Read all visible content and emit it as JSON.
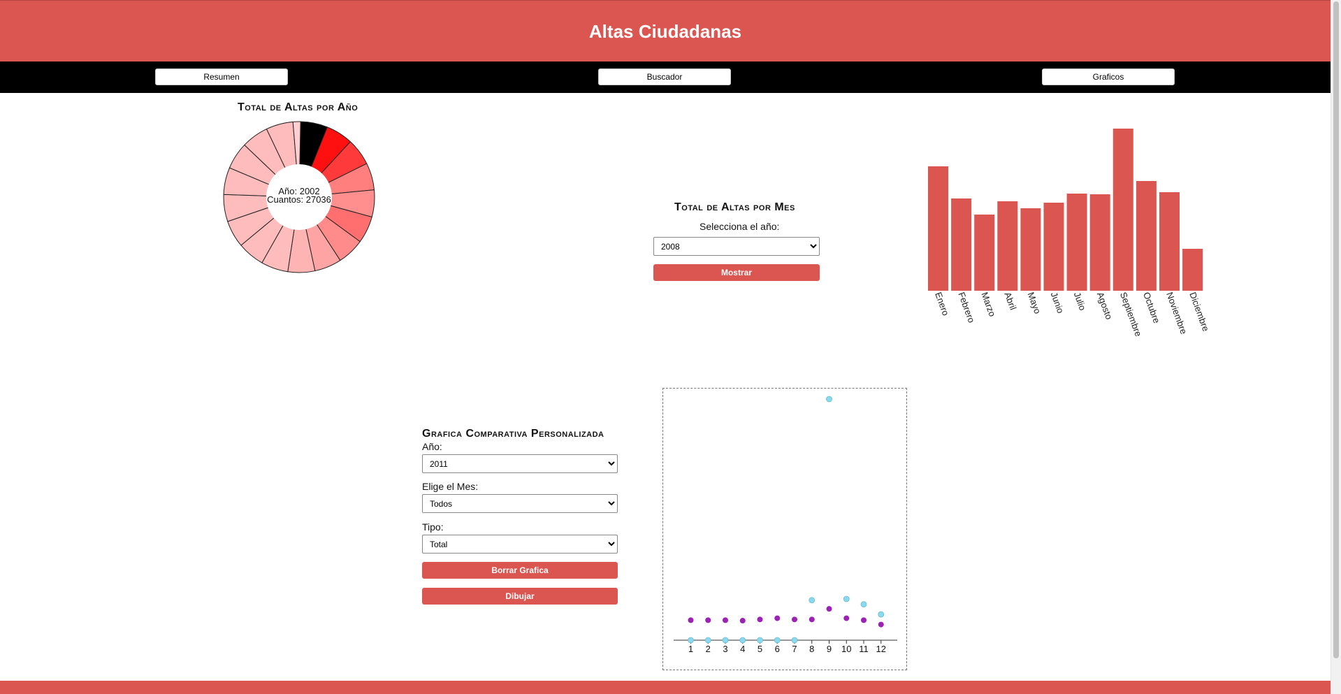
{
  "header": {
    "title": "Altas Ciudadanas"
  },
  "nav": {
    "items": [
      "Resumen",
      "Buscador",
      "Graficos"
    ]
  },
  "pie_section": {
    "title": "Total de Altas por Año",
    "center_line1": "Año: 2002",
    "center_line2": "Cuantos: 27036"
  },
  "month_section": {
    "title": "Total de Altas por Mes",
    "year_label": "Selecciona el año:",
    "year_value": "2008",
    "button_label": "Mostrar"
  },
  "custom_section": {
    "title": "Grafica Comparativa Personalizada",
    "year_label": "Año:",
    "year_value": "2011",
    "month_label": "Elige el Mes:",
    "month_value": "Todos",
    "type_label": "Tipo:",
    "type_value": "Total",
    "clear_label": "Borrar Grafica",
    "draw_label": "Dibujar"
  },
  "colors": {
    "brand": "#dc5651",
    "pie_highlight": "#000000",
    "scatter_series_a": "#9b22b5",
    "scatter_series_b": "#8ad9ee"
  },
  "chart_data": [
    {
      "type": "pie",
      "style": "donut",
      "slices": [
        {
          "value": 1,
          "color": "#000000"
        },
        {
          "value": 1,
          "color": "#ff1010"
        },
        {
          "value": 1,
          "color": "#ff3a3a"
        },
        {
          "value": 1,
          "color": "#ff7e7e"
        },
        {
          "value": 1,
          "color": "#ff8f8f"
        },
        {
          "value": 1,
          "color": "#ff6f6f"
        },
        {
          "value": 1,
          "color": "#ff8b8b"
        },
        {
          "value": 1,
          "color": "#ffa4a4"
        },
        {
          "value": 1,
          "color": "#ffb4b4"
        },
        {
          "value": 1,
          "color": "#ffbcbc"
        },
        {
          "value": 1,
          "color": "#ffbcbc"
        },
        {
          "value": 1,
          "color": "#ffbcbc"
        },
        {
          "value": 1,
          "color": "#ffbcbc"
        },
        {
          "value": 1,
          "color": "#ffbcbc"
        },
        {
          "value": 1,
          "color": "#ffbcbc"
        },
        {
          "value": 1,
          "color": "#ffbcbc"
        },
        {
          "value": 1,
          "color": "#ffbcbc"
        },
        {
          "value": 0.28,
          "color": "#ffcfd2"
        }
      ]
    },
    {
      "type": "bar",
      "categories": [
        "Enero",
        "Febrero",
        "Marzo",
        "Abril",
        "Mayo",
        "Junio",
        "Julio",
        "Agosto",
        "Septiembre",
        "Octubre",
        "Noviembre",
        "Diciembre"
      ],
      "values": [
        178,
        132,
        109,
        128,
        118,
        126,
        139,
        138,
        232,
        157,
        141,
        60
      ],
      "ylim": [
        0,
        232
      ],
      "grid": false
    },
    {
      "type": "scatter",
      "x": [
        1,
        2,
        3,
        4,
        5,
        6,
        7,
        8,
        9,
        10,
        11,
        12
      ],
      "ylim": [
        0,
        100
      ],
      "grid": false,
      "series": [
        {
          "values": [
            8.3,
            8.3,
            8.3,
            8.1,
            8.6,
            9.1,
            8.6,
            8.6,
            13.0,
            9.1,
            8.3,
            6.5
          ]
        },
        {
          "values": [
            0,
            0,
            0,
            0,
            0,
            0,
            0,
            16.6,
            100,
            17.1,
            14.9,
            10.7
          ]
        }
      ]
    }
  ]
}
